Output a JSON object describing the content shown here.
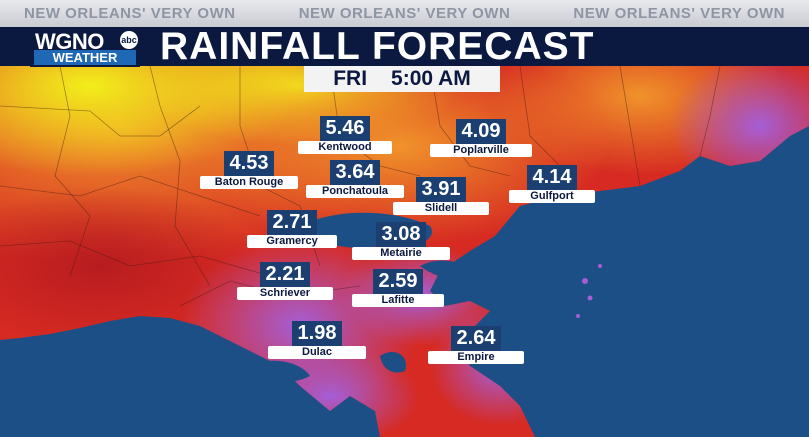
{
  "banner": {
    "left": "NEW ORLEANS' VERY OWN",
    "center": "NEW ORLEANS' VERY OWN",
    "right": "NEW ORLEANS' VERY OWN"
  },
  "logo": {
    "station": "WGNO",
    "network": "abc",
    "sub": "WEATHER"
  },
  "title": "RAINFALL FORECAST",
  "time": {
    "day": "FRI",
    "clock": "5:00 AM"
  },
  "locations": [
    {
      "name": "Kentwood",
      "value": "5.46"
    },
    {
      "name": "Poplarville",
      "value": "4.09"
    },
    {
      "name": "Baton Rouge",
      "value": "4.53"
    },
    {
      "name": "Ponchatoula",
      "value": "3.64"
    },
    {
      "name": "Slidell",
      "value": "3.91"
    },
    {
      "name": "Gulfport",
      "value": "4.14"
    },
    {
      "name": "Gramercy",
      "value": "2.71"
    },
    {
      "name": "Metairie",
      "value": "3.08"
    },
    {
      "name": "Schriever",
      "value": "2.21"
    },
    {
      "name": "Lafitte",
      "value": "2.59"
    },
    {
      "name": "Dulac",
      "value": "1.98"
    },
    {
      "name": "Empire",
      "value": "2.64"
    }
  ],
  "colors": {
    "water": "#1c4f86",
    "light_rain": "#f2ee1a",
    "moderate_rain": "#f08a2a",
    "heavy_rain": "#d62a22",
    "very_heavy_rain": "#9a55c4",
    "title_bar": "#0b1840",
    "label_value_bg": "#1b3f70"
  }
}
